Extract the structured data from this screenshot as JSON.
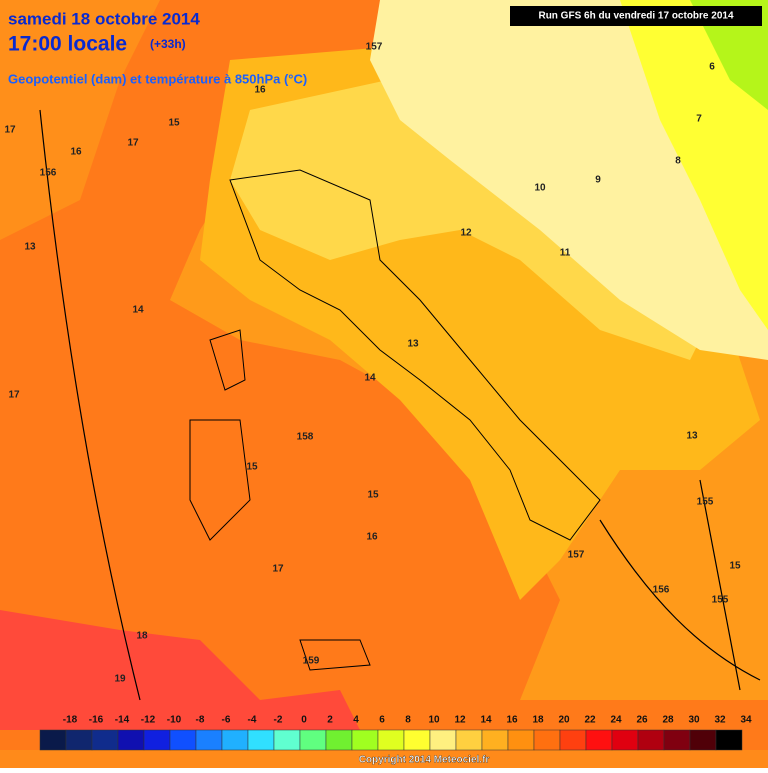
{
  "header": {
    "date": "samedi 18 octobre 2014",
    "time": "17:00 locale",
    "offset": "(+33h)",
    "subtitle": "Geopotentiel (dam) et température à 850hPa (°C)",
    "run": "Run GFS 6h du vendredi 17 octobre 2014"
  },
  "contour_labels": [
    "17",
    "16",
    "156",
    "15",
    "17",
    "16",
    "157",
    "13",
    "14",
    "17",
    "13",
    "14",
    "158",
    "15",
    "15",
    "16",
    "17",
    "18",
    "19",
    "159",
    "157",
    "156",
    "155",
    "155",
    "15",
    "13",
    "12",
    "11",
    "10",
    "9",
    "8",
    "7",
    "6"
  ],
  "colorbar": {
    "labels": [
      -18,
      -16,
      -14,
      -12,
      -10,
      -8,
      -6,
      -4,
      -2,
      0,
      2,
      4,
      6,
      8,
      10,
      12,
      14,
      16,
      18,
      20,
      22,
      24,
      26,
      28,
      30,
      32,
      34
    ],
    "colors": [
      "#0a1a4a",
      "#10266e",
      "#102c8c",
      "#1010b0",
      "#1020e0",
      "#1050ff",
      "#1a80ff",
      "#20b0ff",
      "#30e0ff",
      "#60ffd0",
      "#60ff80",
      "#70f030",
      "#a0ff20",
      "#e0ff20",
      "#ffff30",
      "#fff080",
      "#ffd040",
      "#ffb020",
      "#ff9010",
      "#ff7010",
      "#ff4010",
      "#ff1010",
      "#e00010",
      "#b00010",
      "#800010",
      "#500008",
      "#000000"
    ]
  },
  "footer": {
    "copyright": "Copyright 2014 Meteociel.fr"
  }
}
